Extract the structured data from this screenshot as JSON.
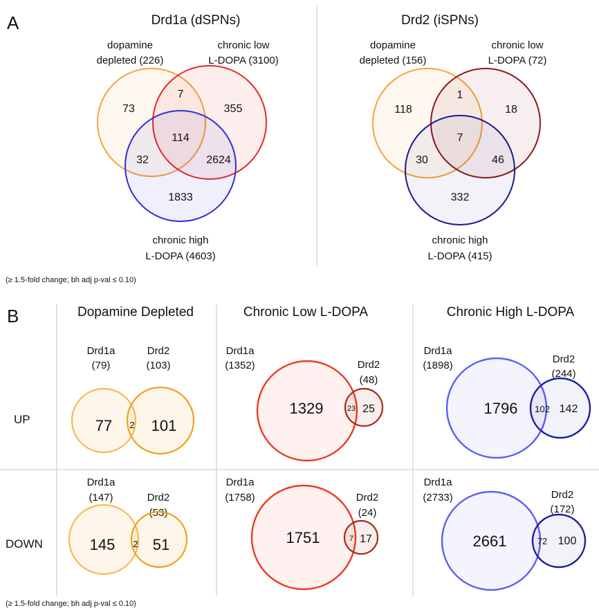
{
  "panel_a": {
    "letter": "A",
    "note": "(≥ 1.5-fold change; bh adj p-val ≤ 0.10)",
    "venn_drd1a": {
      "title": "Drd1a (dSPNs)",
      "set_dd": {
        "line1": "dopamine",
        "line2": "depleted (226)",
        "color": "#f5a33d"
      },
      "set_low": {
        "line1": "chronic low",
        "line2": "L-DOPA (3100)",
        "color": "#e8262a"
      },
      "set_high": {
        "line1": "chronic high",
        "line2": "L-DOPA (4603)",
        "color": "#2d2fd6"
      },
      "counts": {
        "dd_only": "73",
        "dd_low": "7",
        "low_only": "355",
        "all": "114",
        "dd_high": "32",
        "low_high": "2624",
        "high_only": "1833"
      }
    },
    "venn_drd2": {
      "title": "Drd2 (iSPNs)",
      "set_dd": {
        "line1": "dopamine",
        "line2": "depleted (156)",
        "color": "#f5a33d"
      },
      "set_low": {
        "line1": "chronic low",
        "line2": "L-DOPA (72)",
        "color": "#8b1a1a"
      },
      "set_high": {
        "line1": "chronic high",
        "line2": "L-DOPA (415)",
        "color": "#1a1a8c"
      },
      "counts": {
        "dd_only": "118",
        "dd_low": "1",
        "low_only": "18",
        "all": "7",
        "dd_high": "30",
        "low_high": "46",
        "high_only": "332"
      }
    }
  },
  "panel_b": {
    "letter": "B",
    "note": "(≥ 1.5-fold change; bh adj p-val ≤ 0.10)",
    "columns": [
      "Dopamine Depleted",
      "Chronic Low L-DOPA",
      "Chronic High L-DOPA"
    ],
    "rows": [
      "UP",
      "DOWN"
    ],
    "drd1a_name": "Drd1a",
    "drd2_name": "Drd2",
    "colors": {
      "dd_drd1a": "#f7b955",
      "dd_drd2": "#f0a020",
      "low_drd1a": "#ec3a22",
      "low_drd2": "#a52a1a",
      "high_drd1a": "#5b5ef0",
      "high_drd2": "#1a1f9a"
    },
    "up": {
      "dd": {
        "drd1a_total": "(79)",
        "drd2_total": "(103)",
        "drd1a_only": "77",
        "overlap": "2",
        "drd2_only": "101"
      },
      "low": {
        "drd1a_total": "(1352)",
        "drd2_total": "(48)",
        "drd1a_only": "1329",
        "overlap": "23",
        "drd2_only": "25"
      },
      "high": {
        "drd1a_total": "(1898)",
        "drd2_total": "(244)",
        "drd1a_only": "1796",
        "overlap": "102",
        "drd2_only": "142"
      }
    },
    "down": {
      "dd": {
        "drd1a_total": "(147)",
        "drd2_total": "(53)",
        "drd1a_only": "145",
        "overlap": "2",
        "drd2_only": "51"
      },
      "low": {
        "drd1a_total": "(1758)",
        "drd2_total": "(24)",
        "drd1a_only": "1751",
        "overlap": "7",
        "drd2_only": "17"
      },
      "high": {
        "drd1a_total": "(2733)",
        "drd2_total": "(172)",
        "drd1a_only": "2661",
        "overlap": "72",
        "drd2_only": "100"
      }
    }
  }
}
